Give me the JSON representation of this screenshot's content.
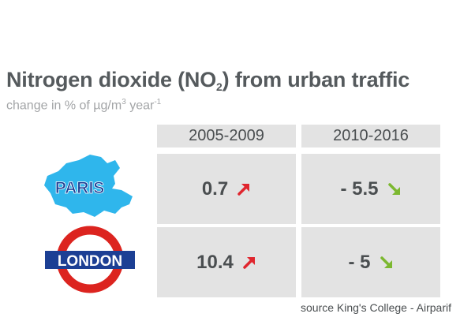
{
  "title_prefix": "Nitrogen dioxide (NO",
  "title_sub": "2",
  "title_suffix": ") from urban traffic",
  "subtitle_prefix": "change in % of µg/m",
  "subtitle_sup1": "3",
  "subtitle_mid": " year",
  "subtitle_sup2": "-1",
  "source": "source King's College - Airparif",
  "colors": {
    "up": "#e0262e",
    "down": "#7cb830",
    "paris_blue": "#2fb6ec",
    "london_red": "#dc241f",
    "london_blue": "#1c3f94"
  },
  "chart_data": {
    "type": "table",
    "columns": [
      "2005-2009",
      "2010-2016"
    ],
    "rows": [
      {
        "city": "PARIS",
        "values": [
          "0.7",
          "- 5.5"
        ],
        "trends": [
          "up",
          "down"
        ]
      },
      {
        "city": "LONDON",
        "values": [
          "10.4",
          "- 5"
        ],
        "trends": [
          "up",
          "down"
        ]
      }
    ]
  }
}
